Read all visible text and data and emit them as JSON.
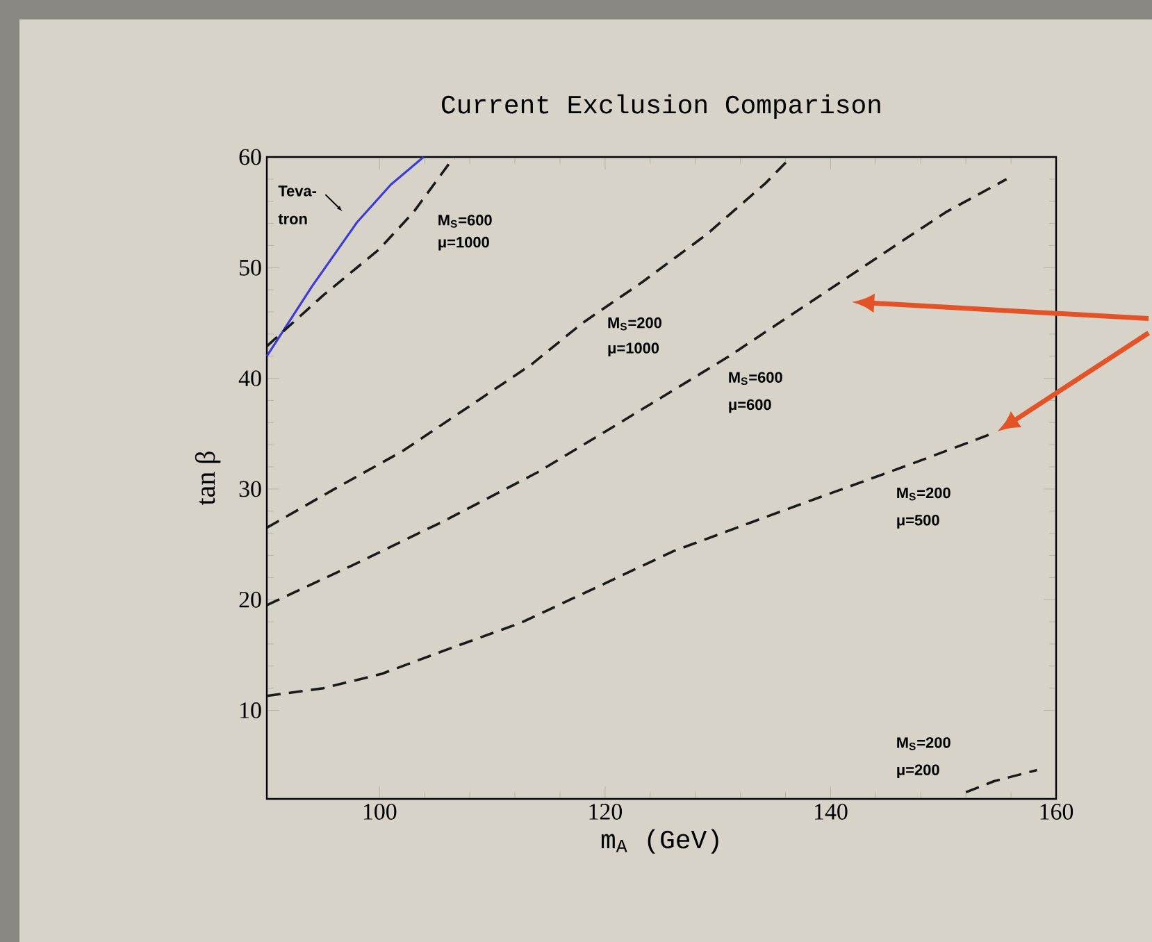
{
  "chart_data": {
    "type": "line",
    "title": "Current Exclusion Comparison",
    "xlabel": "m$_{A}$ (GeV)",
    "ylabel": "tan β",
    "xlim": [
      90,
      160
    ],
    "xticks": [
      100,
      120,
      140,
      160
    ],
    "ylim": [
      2,
      60
    ],
    "yticks": [
      10,
      20,
      30,
      40,
      50,
      60
    ],
    "series": [
      {
        "color": "#3b3bd6",
        "line_style": "solid",
        "x": [
          90,
          94,
          98,
          101,
          103.9
        ],
        "values": [
          42,
          48.3,
          54.1,
          57.5,
          60
        ]
      },
      {
        "color": "#1a1a1a",
        "line_style": "dashed",
        "x": [
          90,
          95,
          99.9,
          103,
          106.6
        ],
        "values": [
          42.9,
          47.5,
          51.6,
          55,
          60
        ]
      },
      {
        "color": "#1a1a1a",
        "line_style": "dashed",
        "x": [
          90,
          96,
          102,
          108,
          113.4,
          118,
          123.3,
          129,
          134.2,
          136.5
        ],
        "values": [
          26.5,
          30,
          33.4,
          37.5,
          41.2,
          45,
          48.7,
          53,
          57.6,
          60
        ]
      },
      {
        "color": "#1a1a1a",
        "line_style": "dashed",
        "x": [
          90,
          98,
          105.7,
          114,
          121.5,
          131,
          139.7,
          145,
          150.2,
          155.6
        ],
        "values": [
          19.5,
          23.3,
          27.1,
          31.5,
          36.1,
          42,
          47.9,
          51.5,
          55,
          58
        ]
      },
      {
        "color": "#1a1a1a",
        "line_style": "dashed",
        "x": [
          90,
          95,
          100.2,
          106,
          112.5,
          119,
          126.1,
          133,
          139.7,
          147,
          154.3
        ],
        "values": [
          11.3,
          12,
          13.3,
          15.5,
          17.9,
          21,
          24.4,
          27,
          29.5,
          32.2,
          35
        ]
      },
      {
        "color": "#1a1a1a",
        "line_style": "dashed",
        "x": [
          152,
          154.5,
          158.3
        ],
        "values": [
          2.6,
          3.6,
          4.6
        ]
      }
    ],
    "annotations": [
      "Teva-",
      "tron",
      "M$_{S}$=600",
      "μ=1000",
      "M$_{S}$=200",
      "μ=1000",
      "M$_{S}$=600",
      "μ=600",
      "M$_{S}$=200",
      "μ=500",
      "M$_{S}$=200",
      "μ=200"
    ]
  }
}
